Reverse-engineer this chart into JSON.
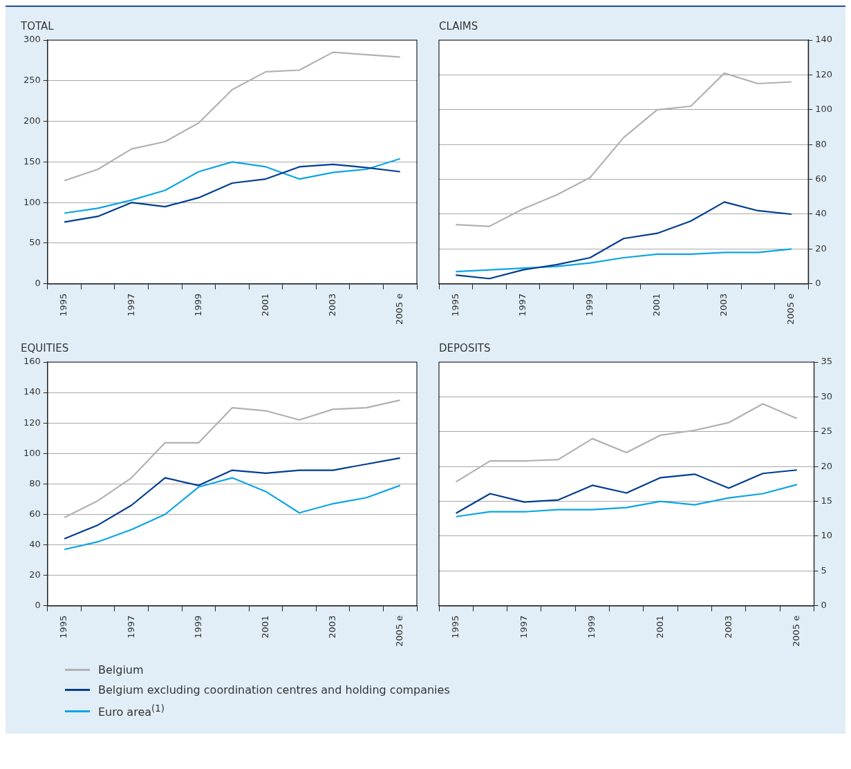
{
  "chart_data": [
    {
      "type": "line",
      "title": "TOTAL",
      "categories": [
        "1995",
        null,
        "1997",
        null,
        "1999",
        null,
        "2001",
        null,
        "2003",
        null,
        "2005 e"
      ],
      "ylim": [
        0,
        300
      ],
      "yticks": [
        0,
        50,
        100,
        150,
        200,
        250,
        300
      ],
      "grid": "y",
      "series": [
        {
          "color": "#b1b1b3",
          "values": [
            127,
            141,
            166,
            175,
            198,
            239,
            261,
            263,
            285,
            282,
            279
          ]
        },
        {
          "color": "#003d8f",
          "values": [
            76,
            83,
            100,
            95,
            106,
            124,
            129,
            144,
            147,
            143,
            138
          ]
        },
        {
          "color": "#0ba5e6",
          "values": [
            87,
            93,
            103,
            115,
            138,
            150,
            144,
            129,
            137,
            141,
            154
          ]
        }
      ]
    },
    {
      "type": "line",
      "title": "CLAIMS",
      "categories": [
        "1995",
        null,
        "1997",
        null,
        "1999",
        null,
        "2001",
        null,
        "2003",
        null,
        "2005 e"
      ],
      "y2lim": [
        0,
        140
      ],
      "y2ticks": [
        0,
        20,
        40,
        60,
        80,
        100,
        120,
        140
      ],
      "grid": "y",
      "series": [
        {
          "color": "#b1b1b3",
          "axis": "y2",
          "values": [
            34,
            33,
            43,
            51,
            61,
            84,
            100,
            102,
            121,
            115,
            116
          ]
        },
        {
          "color": "#003d8f",
          "axis": "y2",
          "values": [
            5,
            3,
            8,
            11,
            15,
            26,
            29,
            36,
            47,
            42,
            40
          ]
        },
        {
          "color": "#0ba5e6",
          "axis": "y2",
          "values": [
            7,
            8,
            9,
            10,
            12,
            15,
            17,
            17,
            18,
            18,
            20
          ]
        }
      ]
    },
    {
      "type": "line",
      "title": "EQUITIES",
      "categories": [
        "1995",
        null,
        "1997",
        null,
        "1999",
        null,
        "2001",
        null,
        "2003",
        null,
        "2005 e"
      ],
      "ylim": [
        0,
        160
      ],
      "yticks": [
        0,
        20,
        40,
        60,
        80,
        100,
        120,
        140,
        160
      ],
      "grid": "y",
      "legend": "bottom",
      "series": [
        {
          "name": "Belgium",
          "color": "#b1b1b3",
          "values": [
            58,
            69,
            84,
            107,
            107,
            130,
            128,
            122,
            129,
            130,
            135
          ]
        },
        {
          "name": "Belgium excluding coordination centres and holding companies",
          "color": "#003d8f",
          "values": [
            44,
            53,
            66,
            84,
            79,
            89,
            87,
            89,
            89,
            93,
            97
          ]
        },
        {
          "name": "Euro area$^{(1)}$",
          "color": "#0ba5e6",
          "values": [
            37,
            42,
            50,
            60,
            78,
            84,
            75,
            61,
            67,
            71,
            79
          ]
        }
      ]
    },
    {
      "type": "line",
      "title": "DEPOSITS",
      "categories": [
        "1995",
        null,
        "1997",
        null,
        "1999",
        null,
        "2001",
        null,
        "2003",
        null,
        "2005 e"
      ],
      "y2lim": [
        0,
        35
      ],
      "y2ticks": [
        0,
        5,
        10,
        15,
        20,
        25,
        30,
        35
      ],
      "grid": "y",
      "series": [
        {
          "color": "#b1b1b3",
          "axis": "y2",
          "values": [
            17.8,
            20.8,
            20.8,
            21.0,
            24.0,
            22.0,
            24.5,
            25.2,
            26.3,
            29.0,
            26.9
          ]
        },
        {
          "color": "#003d8f",
          "axis": "y2",
          "values": [
            13.3,
            16.1,
            14.9,
            15.2,
            17.3,
            16.2,
            18.4,
            18.9,
            16.9,
            19.0,
            19.5
          ]
        },
        {
          "color": "#0ba5e6",
          "axis": "y2",
          "values": [
            12.8,
            13.5,
            13.5,
            13.8,
            13.8,
            14.1,
            15.0,
            14.5,
            15.5,
            16.1,
            17.4
          ]
        }
      ]
    }
  ]
}
